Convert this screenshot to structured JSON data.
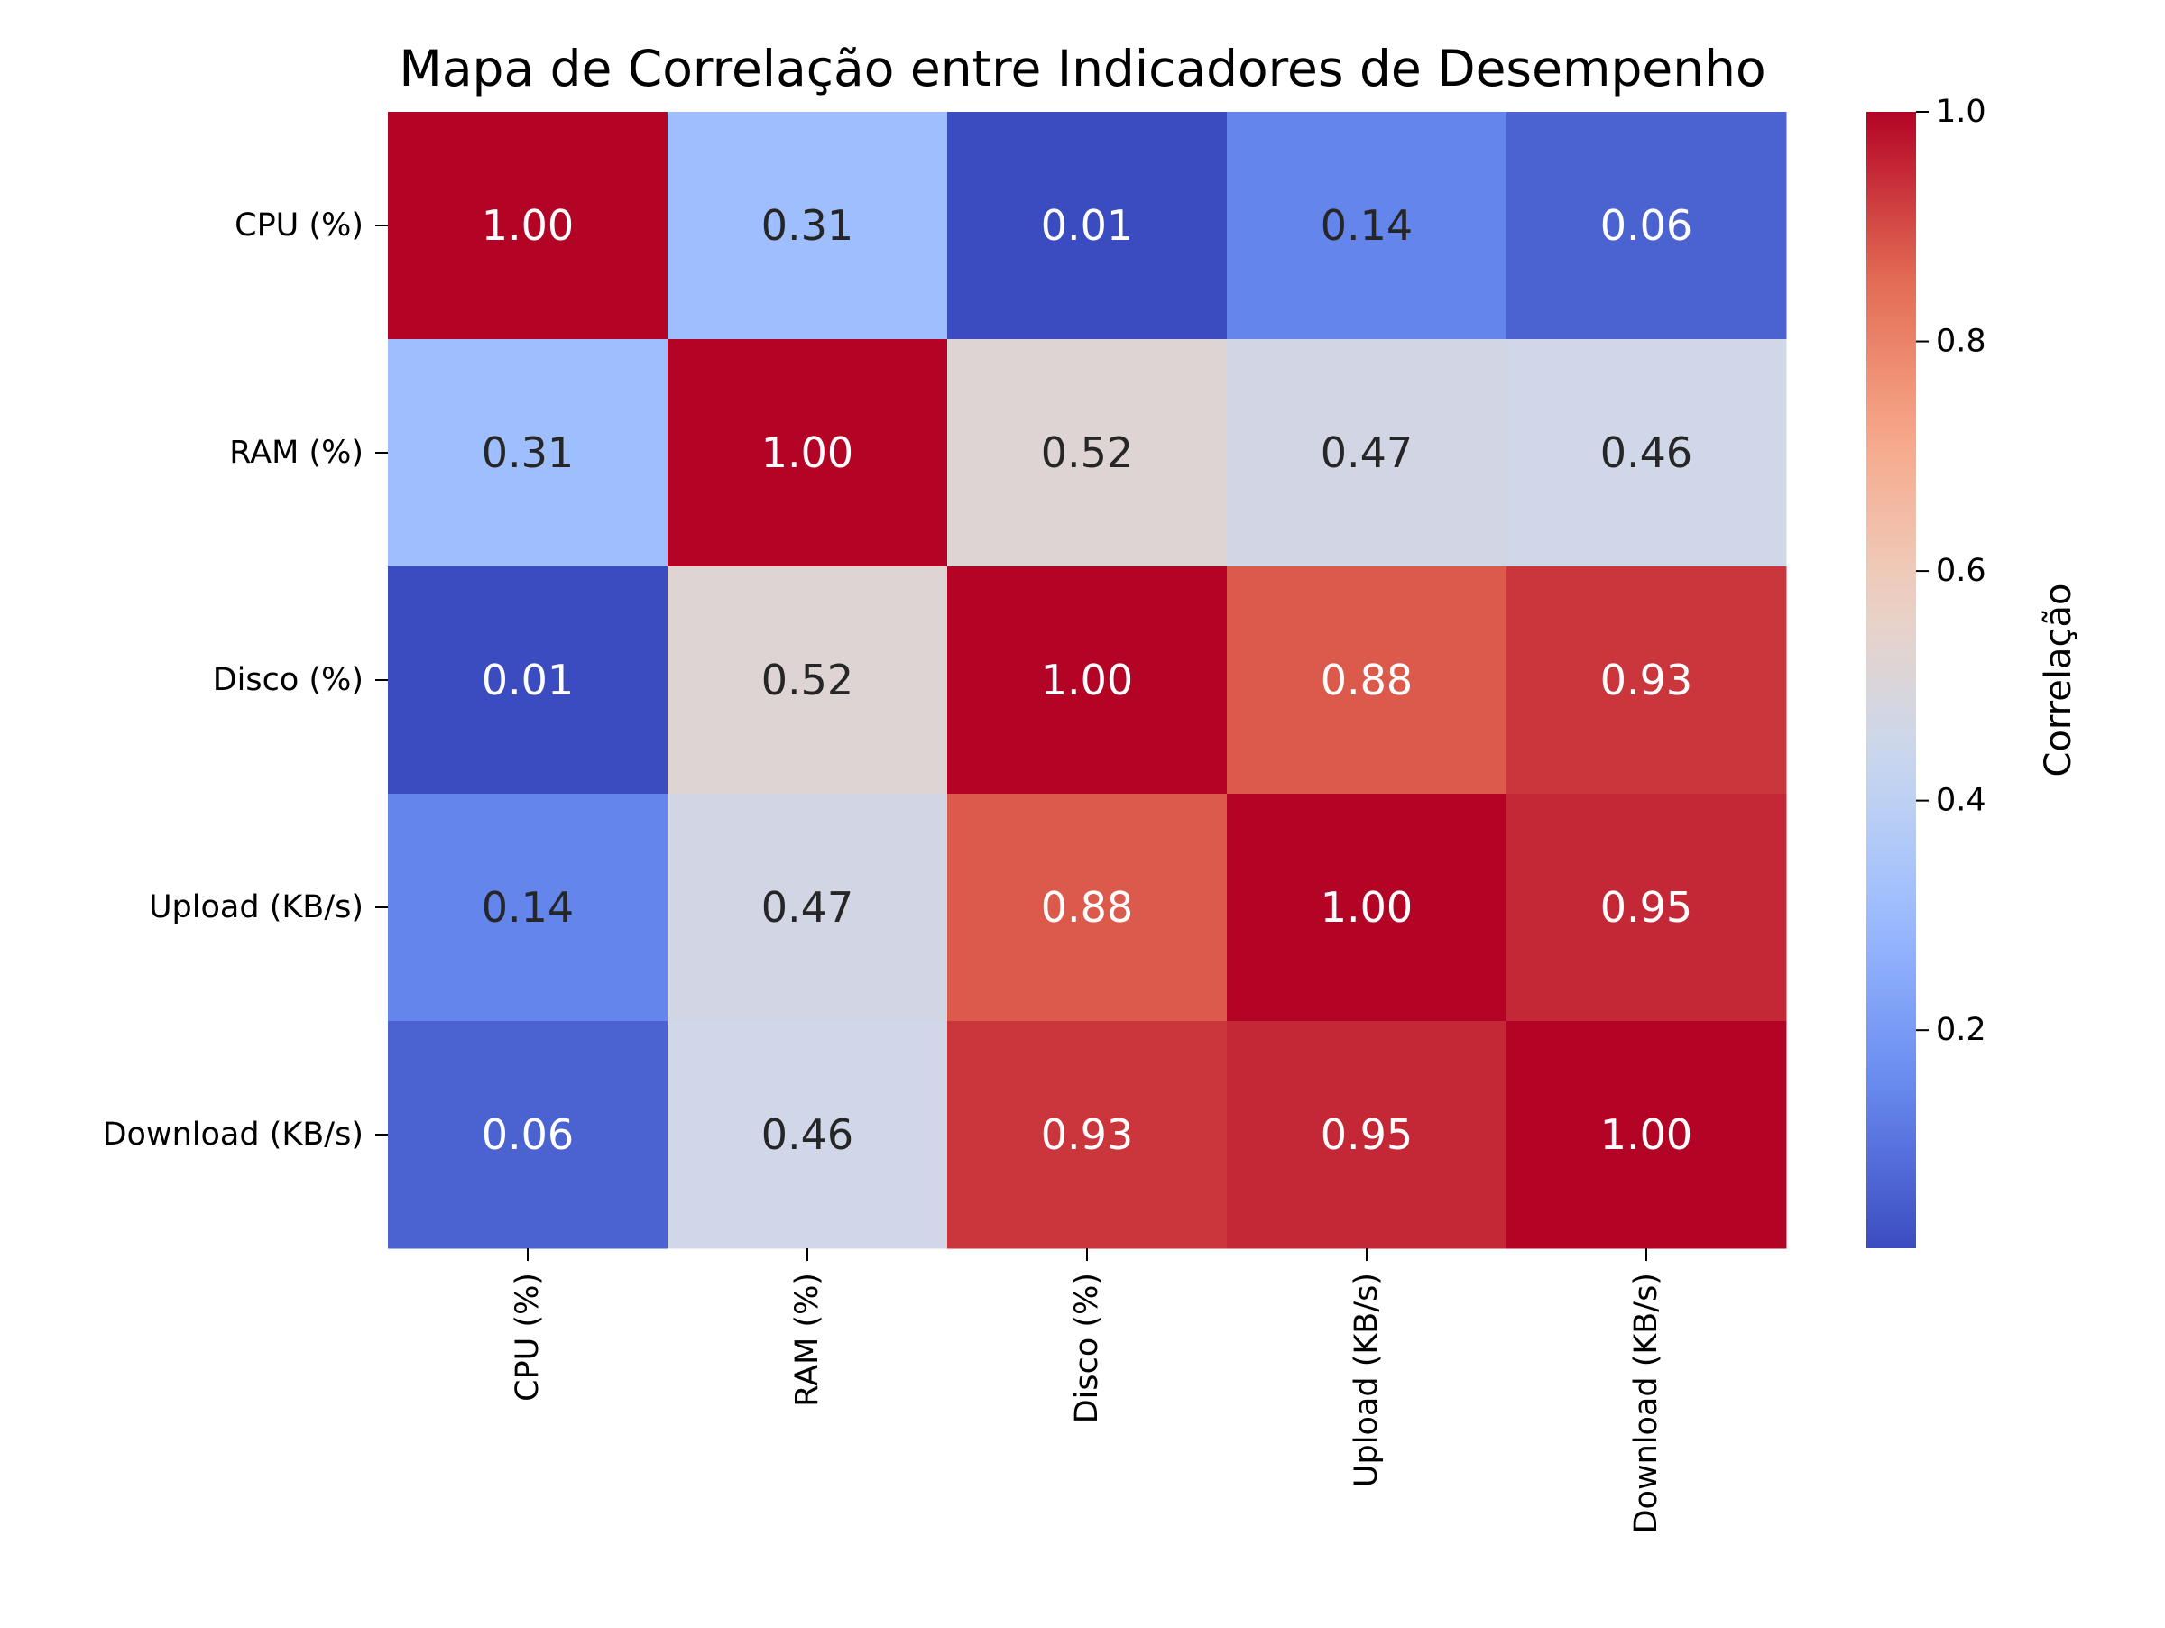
{
  "chart_data": {
    "type": "heatmap",
    "title": "Mapa de Correlação entre Indicadores de Desempenho",
    "row_labels": [
      "CPU (%)",
      "RAM (%)",
      "Disco (%)",
      "Upload (KB/s)",
      "Download (KB/s)"
    ],
    "col_labels": [
      "CPU (%)",
      "RAM (%)",
      "Disco (%)",
      "Upload (KB/s)",
      "Download (KB/s)"
    ],
    "values": [
      [
        1.0,
        0.31,
        0.01,
        0.14,
        0.06
      ],
      [
        0.31,
        1.0,
        0.52,
        0.47,
        0.46
      ],
      [
        0.01,
        0.52,
        1.0,
        0.88,
        0.93
      ],
      [
        0.14,
        0.47,
        0.88,
        1.0,
        0.95
      ],
      [
        0.06,
        0.46,
        0.93,
        0.95,
        1.0
      ]
    ],
    "cell_text": [
      [
        "1.00",
        "0.31",
        "0.01",
        "0.14",
        "0.06"
      ],
      [
        "0.31",
        "1.00",
        "0.52",
        "0.47",
        "0.46"
      ],
      [
        "0.01",
        "0.52",
        "1.00",
        "0.88",
        "0.93"
      ],
      [
        "0.14",
        "0.47",
        "0.88",
        "1.00",
        "0.95"
      ],
      [
        "0.06",
        "0.46",
        "0.93",
        "0.95",
        "1.00"
      ]
    ],
    "colormap": "coolwarm",
    "vmin": 0.01,
    "vmax": 1.0,
    "colorbar": {
      "label": "Correlação",
      "ticks": [
        0.2,
        0.4,
        0.6,
        0.8,
        1.0
      ],
      "tick_labels": [
        "0.2",
        "0.4",
        "0.6",
        "0.8",
        "1.0"
      ]
    },
    "colormap_stops": [
      "#3b4cc0",
      "#688aef",
      "#99baff",
      "#c9d8f0",
      "#edd1c2",
      "#f7a889",
      "#e26952",
      "#b40426"
    ]
  }
}
